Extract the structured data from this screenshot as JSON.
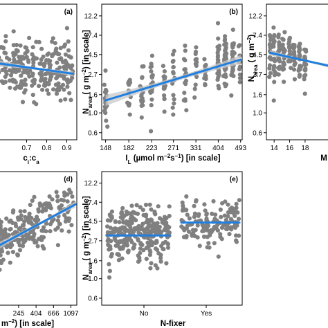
{
  "chart_data": [
    {
      "id": "a",
      "type": "scatter",
      "panel_label": "(a)",
      "xlabel_parts": [
        "c",
        "i",
        ":c",
        "a"
      ],
      "ylabel": "",
      "x_ticks": [
        "0.7",
        "0.8",
        "0.9"
      ],
      "x_tick_values": [
        0.7,
        0.8,
        0.9
      ],
      "xlim": [
        0.55,
        0.95
      ],
      "y_ticks": [],
      "ylim": [
        0.6,
        18.0
      ],
      "y_scale": "log",
      "fit": {
        "x": [
          0.55,
          0.93
        ],
        "y": [
          4.1,
          3.15
        ]
      },
      "band_halfwidth": 0.06,
      "cloud": {
        "n": 260,
        "x": [
          0.55,
          0.93
        ],
        "y_center": 3.6,
        "spread": 0.35
      }
    },
    {
      "id": "b",
      "type": "scatter",
      "panel_label": "(b)",
      "xlabel": "I_L (µmol m⁻² s⁻¹) [in scale]",
      "xlabel_parts": [
        "I",
        "L",
        " (µmol m",
        "−2",
        "s",
        "−1",
        ") [in scale]"
      ],
      "ylabel_parts": [
        "N",
        "area",
        " ( g m",
        "−2",
        ") [in scale]"
      ],
      "x_ticks": [
        "148",
        "182",
        "223",
        "271",
        "331",
        "404",
        "493"
      ],
      "x_tick_values": [
        148,
        182,
        223,
        271,
        331,
        404,
        493
      ],
      "xlim": [
        143,
        500
      ],
      "x_scale": "log",
      "y_ticks": [
        "0.6",
        "1.0",
        "1.6",
        "2.7",
        "4.5",
        "7.4",
        "12.2"
      ],
      "y_tick_values": [
        0.6,
        1.0,
        1.6,
        2.7,
        4.5,
        7.4,
        12.2
      ],
      "ylim": [
        0.5,
        16.5
      ],
      "y_scale": "log",
      "fit": {
        "x": [
          148,
          493
        ],
        "y": [
          1.38,
          3.95
        ]
      },
      "band_halfwidth": 0.1,
      "columns": [
        148,
        182,
        205,
        223,
        250,
        271,
        300,
        331,
        360,
        404,
        430,
        460,
        493
      ]
    },
    {
      "id": "c",
      "type": "scatter",
      "panel_label": "",
      "xlabel_parts": [
        "M"
      ],
      "ylabel_parts": [
        "N",
        "area",
        " ( g m",
        "−2",
        ")"
      ],
      "x_ticks": [
        "14",
        "16",
        "18"
      ],
      "x_tick_values": [
        14,
        16,
        18
      ],
      "xlim": [
        13,
        21.5
      ],
      "y_ticks": [
        "0.6",
        "1.0",
        "1.6",
        "2.7",
        "4.5",
        "7.4",
        "12.2"
      ],
      "y_tick_values": [
        0.6,
        1.0,
        1.6,
        2.7,
        4.5,
        7.4,
        12.2
      ],
      "ylim": [
        0.5,
        16.5
      ],
      "y_scale": "log",
      "fit": {
        "x": [
          13.5,
          21.5
        ],
        "y": [
          4.7,
          3.3
        ]
      },
      "band_halfwidth": 0.05,
      "columns": [
        13.5,
        14.0,
        14.6,
        15.2,
        16.0,
        16.6,
        17.3,
        18.0
      ]
    },
    {
      "id": "d",
      "type": "scatter",
      "panel_label": "(d)",
      "xlabel_parts": [
        "m",
        "−2",
        ") [in scale]"
      ],
      "ylabel": "",
      "x_ticks": [
        "245",
        "404",
        "666",
        "1097"
      ],
      "x_tick_values": [
        245,
        404,
        666,
        1097
      ],
      "xlim": [
        130,
        1300
      ],
      "x_scale": "log",
      "y_ticks": [],
      "ylim": [
        0.5,
        16.5
      ],
      "y_scale": "log",
      "fit": {
        "x": [
          130,
          1250
        ],
        "y": [
          2.3,
          7.0
        ]
      },
      "band_halfwidth": 0.07,
      "cloud": {
        "n": 260,
        "x": [
          130,
          1200
        ],
        "y_center": 3.0,
        "spread": 0.32
      }
    },
    {
      "id": "e",
      "type": "scatter",
      "panel_label": "(e)",
      "xlabel": "N-fixer",
      "ylabel_parts": [
        "N",
        "area",
        " ( g m",
        "−2",
        ") [in scale]"
      ],
      "categories": [
        "No",
        "Yes"
      ],
      "y_ticks": [
        "0.6",
        "1.0",
        "1.6",
        "2.7",
        "4.5",
        "7.4",
        "12.2"
      ],
      "y_tick_values": [
        0.6,
        1.0,
        1.6,
        2.7,
        4.5,
        7.4,
        12.2
      ],
      "ylim": [
        0.5,
        16.5
      ],
      "y_scale": "log",
      "group_means": [
        3.1,
        4.35
      ],
      "groups": [
        {
          "name": "No",
          "n": 300,
          "y_center": 3.2,
          "spread": 0.34
        },
        {
          "name": "Yes",
          "n": 140,
          "y_center": 4.3,
          "spread": 0.3
        }
      ]
    }
  ]
}
